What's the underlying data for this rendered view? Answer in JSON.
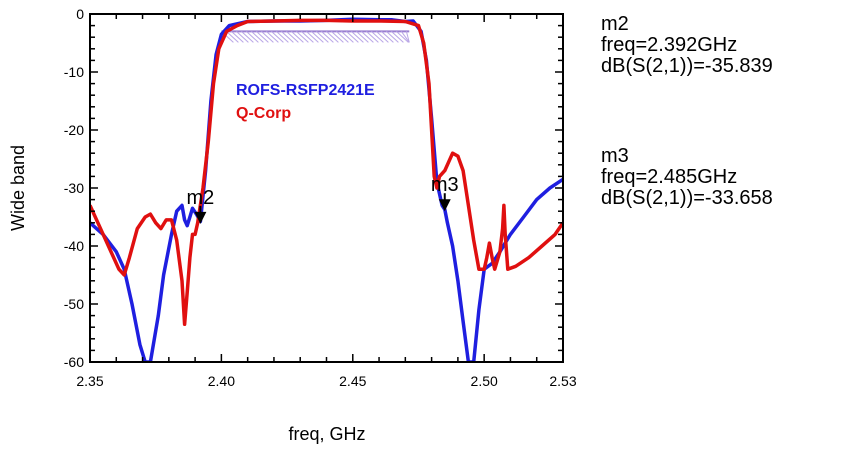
{
  "chart_data": {
    "type": "line",
    "xlabel": "freq, GHz",
    "ylabel": "Wide band",
    "xlim": [
      2.35,
      2.53
    ],
    "ylim": [
      -60,
      0
    ],
    "x_ticks": [
      "2.35",
      "2.40",
      "2.45",
      "2.50",
      "2.53"
    ],
    "y_ticks": [
      "0",
      "-10",
      "-20",
      "-30",
      "-40",
      "-50",
      "-60"
    ],
    "grid": false,
    "legend_position": "top-left inside plot",
    "series": [
      {
        "name": "ROFS-RSFP2421E",
        "color": "#1f1fe0",
        "points": [
          [
            2.35,
            -36
          ],
          [
            2.355,
            -38
          ],
          [
            2.36,
            -41
          ],
          [
            2.363,
            -44
          ],
          [
            2.366,
            -50
          ],
          [
            2.369,
            -57
          ],
          [
            2.371,
            -60
          ],
          [
            2.373,
            -60
          ],
          [
            2.376,
            -52
          ],
          [
            2.378,
            -45
          ],
          [
            2.381,
            -38
          ],
          [
            2.383,
            -34
          ],
          [
            2.385,
            -33
          ],
          [
            2.386,
            -35.5
          ],
          [
            2.387,
            -36.5
          ],
          [
            2.388,
            -35
          ],
          [
            2.389,
            -33.5
          ],
          [
            2.3905,
            -34.5
          ],
          [
            2.392,
            -35.8
          ],
          [
            2.394,
            -27
          ],
          [
            2.396,
            -15
          ],
          [
            2.398,
            -7
          ],
          [
            2.4,
            -3.5
          ],
          [
            2.403,
            -2
          ],
          [
            2.41,
            -1.3
          ],
          [
            2.42,
            -1.2
          ],
          [
            2.43,
            -1.2
          ],
          [
            2.44,
            -1.1
          ],
          [
            2.45,
            -0.9
          ],
          [
            2.46,
            -1
          ],
          [
            2.465,
            -1
          ],
          [
            2.47,
            -1.3
          ],
          [
            2.473,
            -1.2
          ],
          [
            2.476,
            -3
          ],
          [
            2.478,
            -8
          ],
          [
            2.48,
            -18
          ],
          [
            2.482,
            -29
          ],
          [
            2.484,
            -33
          ],
          [
            2.485,
            -33.7
          ],
          [
            2.486,
            -36
          ],
          [
            2.488,
            -40
          ],
          [
            2.49,
            -46
          ],
          [
            2.492,
            -53
          ],
          [
            2.494,
            -60
          ],
          [
            2.496,
            -60
          ],
          [
            2.498,
            -51
          ],
          [
            2.5,
            -44
          ],
          [
            2.503,
            -43
          ],
          [
            2.506,
            -41
          ],
          [
            2.51,
            -38
          ],
          [
            2.515,
            -35
          ],
          [
            2.52,
            -32
          ],
          [
            2.525,
            -30
          ],
          [
            2.53,
            -28.5
          ]
        ]
      },
      {
        "name": "Q-Corp",
        "color": "#e01010",
        "points": [
          [
            2.35,
            -33
          ],
          [
            2.353,
            -36
          ],
          [
            2.357,
            -40
          ],
          [
            2.361,
            -44
          ],
          [
            2.363,
            -45
          ],
          [
            2.365,
            -42
          ],
          [
            2.368,
            -37
          ],
          [
            2.371,
            -35
          ],
          [
            2.373,
            -34.5
          ],
          [
            2.375,
            -36
          ],
          [
            2.377,
            -37
          ],
          [
            2.379,
            -35.5
          ],
          [
            2.381,
            -35.5
          ],
          [
            2.383,
            -39
          ],
          [
            2.385,
            -46
          ],
          [
            2.386,
            -53.5
          ],
          [
            2.387,
            -48
          ],
          [
            2.388,
            -42
          ],
          [
            2.389,
            -38
          ],
          [
            2.39,
            -38
          ],
          [
            2.391,
            -36
          ],
          [
            2.393,
            -30
          ],
          [
            2.395,
            -22
          ],
          [
            2.397,
            -12
          ],
          [
            2.399,
            -6
          ],
          [
            2.402,
            -3
          ],
          [
            2.406,
            -2
          ],
          [
            2.41,
            -1.3
          ],
          [
            2.42,
            -1.2
          ],
          [
            2.43,
            -1.1
          ],
          [
            2.44,
            -1.1
          ],
          [
            2.45,
            -1.2
          ],
          [
            2.46,
            -1.2
          ],
          [
            2.47,
            -1.3
          ],
          [
            2.475,
            -2
          ],
          [
            2.477,
            -5
          ],
          [
            2.479,
            -12
          ],
          [
            2.48,
            -20
          ],
          [
            2.481,
            -28
          ],
          [
            2.482,
            -30
          ],
          [
            2.483,
            -28
          ],
          [
            2.485,
            -27
          ],
          [
            2.488,
            -24
          ],
          [
            2.49,
            -24.5
          ],
          [
            2.492,
            -27
          ],
          [
            2.494,
            -33
          ],
          [
            2.496,
            -39
          ],
          [
            2.498,
            -44
          ],
          [
            2.5,
            -44
          ],
          [
            2.501,
            -42
          ],
          [
            2.502,
            -39.5
          ],
          [
            2.503,
            -42
          ],
          [
            2.504,
            -44
          ],
          [
            2.506,
            -41
          ],
          [
            2.507,
            -37
          ],
          [
            2.5075,
            -33
          ],
          [
            2.508,
            -38
          ],
          [
            2.509,
            -44
          ],
          [
            2.512,
            -43.5
          ],
          [
            2.517,
            -42
          ],
          [
            2.522,
            -40
          ],
          [
            2.527,
            -38
          ],
          [
            2.53,
            -36
          ]
        ]
      }
    ],
    "markers": [
      {
        "label": "m2",
        "x": 2.392,
        "y": -35.839
      },
      {
        "label": "m3",
        "x": 2.485,
        "y": -33.658
      }
    ],
    "spec_band": {
      "x_start": 2.4,
      "x_end": 2.4715,
      "y": -3
    }
  },
  "readouts": [
    {
      "name": "m2",
      "freq": "freq=2.392GHz",
      "value": "dB(S(2,1))=-35.839"
    },
    {
      "name": "m3",
      "freq": "freq=2.485GHz",
      "value": "dB(S(2,1))=-33.658"
    }
  ]
}
